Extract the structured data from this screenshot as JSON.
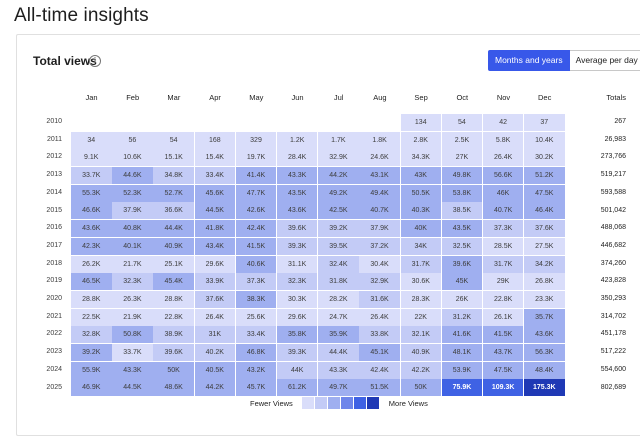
{
  "page": {
    "title": "All-time insights"
  },
  "card": {
    "title": "Total views",
    "help_icon": "info-icon",
    "toggle": {
      "options": [
        "Months and years",
        "Average per day"
      ],
      "selected": "Months and years"
    }
  },
  "table": {
    "months": [
      "Jan",
      "Feb",
      "Mar",
      "Apr",
      "May",
      "Jun",
      "Jul",
      "Aug",
      "Sep",
      "Oct",
      "Nov",
      "Dec"
    ],
    "totals_label": "Totals",
    "rows": [
      {
        "year": "2010",
        "values": [
          "",
          "",
          "",
          "",
          "",
          "",
          "",
          "",
          "134",
          "54",
          "42",
          "37"
        ],
        "levels": [
          0,
          0,
          0,
          0,
          0,
          0,
          0,
          0,
          1,
          1,
          1,
          1
        ],
        "total": "267"
      },
      {
        "year": "2011",
        "values": [
          "34",
          "56",
          "54",
          "168",
          "329",
          "1.2K",
          "1.7K",
          "1.8K",
          "2.8K",
          "2.5K",
          "5.8K",
          "10.4K"
        ],
        "levels": [
          1,
          1,
          1,
          1,
          1,
          1,
          1,
          1,
          1,
          1,
          1,
          1
        ],
        "total": "26,983"
      },
      {
        "year": "2012",
        "values": [
          "9.1K",
          "10.6K",
          "15.1K",
          "15.4K",
          "19.7K",
          "28.4K",
          "32.9K",
          "24.6K",
          "34.3K",
          "27K",
          "26.4K",
          "30.2K"
        ],
        "levels": [
          1,
          1,
          1,
          1,
          1,
          1,
          1,
          1,
          1,
          1,
          1,
          1
        ],
        "total": "273,766"
      },
      {
        "year": "2013",
        "values": [
          "33.7K",
          "44.6K",
          "34.8K",
          "33.4K",
          "41.4K",
          "43.3K",
          "44.2K",
          "43.1K",
          "43K",
          "49.8K",
          "56.6K",
          "51.2K"
        ],
        "levels": [
          2,
          3,
          2,
          2,
          3,
          3,
          3,
          3,
          3,
          3,
          3,
          3
        ],
        "total": "519,217"
      },
      {
        "year": "2014",
        "values": [
          "55.3K",
          "52.3K",
          "52.7K",
          "45.6K",
          "47.7K",
          "43.5K",
          "49.2K",
          "49.4K",
          "50.5K",
          "53.8K",
          "46K",
          "47.5K"
        ],
        "levels": [
          3,
          3,
          3,
          3,
          3,
          3,
          3,
          3,
          3,
          3,
          3,
          3
        ],
        "total": "593,588"
      },
      {
        "year": "2015",
        "values": [
          "46.6K",
          "37.9K",
          "36.6K",
          "44.5K",
          "42.6K",
          "43.6K",
          "42.5K",
          "40.7K",
          "40.3K",
          "38.5K",
          "40.7K",
          "46.4K"
        ],
        "levels": [
          3,
          2,
          2,
          3,
          3,
          3,
          3,
          3,
          3,
          2,
          3,
          3
        ],
        "total": "501,042"
      },
      {
        "year": "2016",
        "values": [
          "43.6K",
          "40.8K",
          "44.4K",
          "41.8K",
          "42.4K",
          "39.6K",
          "39.2K",
          "37.9K",
          "40K",
          "43.5K",
          "37.3K",
          "37.6K"
        ],
        "levels": [
          3,
          3,
          3,
          3,
          3,
          2,
          2,
          2,
          3,
          3,
          2,
          2
        ],
        "total": "488,068"
      },
      {
        "year": "2017",
        "values": [
          "42.3K",
          "40.1K",
          "40.9K",
          "43.4K",
          "41.5K",
          "39.3K",
          "39.5K",
          "37.2K",
          "34K",
          "32.5K",
          "28.5K",
          "27.5K"
        ],
        "levels": [
          3,
          3,
          3,
          3,
          3,
          2,
          2,
          2,
          2,
          2,
          1,
          1
        ],
        "total": "446,682"
      },
      {
        "year": "2018",
        "values": [
          "26.2K",
          "21.7K",
          "25.1K",
          "29.6K",
          "40.6K",
          "31.1K",
          "32.4K",
          "30.4K",
          "31.7K",
          "39.6K",
          "31.7K",
          "34.2K"
        ],
        "levels": [
          1,
          1,
          1,
          1,
          3,
          1,
          2,
          1,
          2,
          3,
          2,
          2
        ],
        "total": "374,260"
      },
      {
        "year": "2019",
        "values": [
          "46.5K",
          "32.3K",
          "45.4K",
          "33.9K",
          "37.3K",
          "32.3K",
          "31.8K",
          "32.9K",
          "30.6K",
          "45K",
          "29K",
          "26.8K"
        ],
        "levels": [
          3,
          2,
          3,
          2,
          2,
          2,
          2,
          2,
          1,
          3,
          1,
          1
        ],
        "total": "423,828"
      },
      {
        "year": "2020",
        "values": [
          "28.8K",
          "26.3K",
          "28.8K",
          "37.6K",
          "38.3K",
          "30.3K",
          "28.2K",
          "31.6K",
          "28.3K",
          "26K",
          "22.8K",
          "23.3K"
        ],
        "levels": [
          1,
          1,
          1,
          2,
          3,
          1,
          1,
          2,
          1,
          1,
          1,
          1
        ],
        "total": "350,293"
      },
      {
        "year": "2021",
        "values": [
          "22.5K",
          "21.9K",
          "22.8K",
          "26.4K",
          "25.6K",
          "29.6K",
          "24.7K",
          "26.4K",
          "22K",
          "31.2K",
          "26.1K",
          "35.7K"
        ],
        "levels": [
          1,
          1,
          1,
          1,
          1,
          1,
          1,
          1,
          1,
          2,
          1,
          3
        ],
        "total": "314,702"
      },
      {
        "year": "2022",
        "values": [
          "32.8K",
          "50.8K",
          "38.9K",
          "31K",
          "33.4K",
          "35.8K",
          "35.9K",
          "33.8K",
          "32.1K",
          "41.6K",
          "41.5K",
          "43.6K"
        ],
        "levels": [
          2,
          3,
          2,
          2,
          2,
          3,
          3,
          2,
          2,
          3,
          3,
          3
        ],
        "total": "451,178"
      },
      {
        "year": "2023",
        "values": [
          "39.2K",
          "33.7K",
          "39.6K",
          "40.2K",
          "46.8K",
          "39.3K",
          "44.4K",
          "45.1K",
          "40.9K",
          "48.1K",
          "43.7K",
          "56.3K"
        ],
        "levels": [
          3,
          1,
          2,
          2,
          3,
          2,
          2,
          3,
          2,
          3,
          3,
          3
        ],
        "total": "517,222"
      },
      {
        "year": "2024",
        "values": [
          "55.9K",
          "43.3K",
          "50K",
          "40.5K",
          "43.2K",
          "44K",
          "43.3K",
          "42.4K",
          "42.2K",
          "53.9K",
          "47.5K",
          "48.4K"
        ],
        "levels": [
          3,
          3,
          3,
          3,
          3,
          2,
          2,
          2,
          2,
          3,
          3,
          3
        ],
        "total": "554,600"
      },
      {
        "year": "2025",
        "values": [
          "46.9K",
          "44.5K",
          "48.6K",
          "44.2K",
          "45.7K",
          "61.2K",
          "49.7K",
          "51.5K",
          "50K",
          "75.9K",
          "109.3K",
          "175.3K"
        ],
        "levels": [
          3,
          3,
          3,
          3,
          3,
          3,
          3,
          3,
          3,
          4,
          4,
          5
        ],
        "total": "802,689"
      }
    ]
  },
  "legend": {
    "fewer_label": "Fewer Views",
    "more_label": "More Views",
    "colors": [
      "#d9ddfa",
      "#c3cbf6",
      "#9faff0",
      "#6f86ea",
      "#3f62e4",
      "#1f39b5"
    ]
  }
}
